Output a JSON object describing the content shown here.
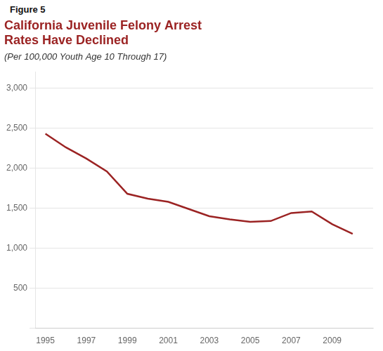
{
  "chart_data": {
    "type": "line",
    "title": "California Juvenile Felony Arrest\nRates Have Declined",
    "subtitle": "(Per 100,000 Youth Age 10 Through 17)",
    "annotations": [
      "Figure 5"
    ],
    "x": [
      1995,
      1996,
      1997,
      1998,
      1999,
      2000,
      2001,
      2002,
      2003,
      2004,
      2005,
      2006,
      2007,
      2008,
      2009,
      2010
    ],
    "values": [
      2430,
      2260,
      2120,
      1960,
      1680,
      1620,
      1580,
      1490,
      1400,
      1360,
      1330,
      1340,
      1440,
      1460,
      1300,
      1180
    ],
    "color": "#9B2323",
    "marker": "none",
    "xlim": [
      1994.5,
      2011
    ],
    "xticks": [
      1995,
      1997,
      1999,
      2001,
      2003,
      2005,
      2007,
      2009
    ],
    "ylim": [
      0,
      3200
    ],
    "yticks": [
      {
        "value": 0,
        "label": ""
      },
      500,
      {
        "value": 1000,
        "label": "1,000"
      },
      {
        "value": 1500,
        "label": "1,500"
      },
      {
        "value": 2000,
        "label": "2,000"
      },
      {
        "value": 2500,
        "label": "2,500"
      },
      {
        "value": 3000,
        "label": "3,000"
      }
    ],
    "grid": "y"
  }
}
